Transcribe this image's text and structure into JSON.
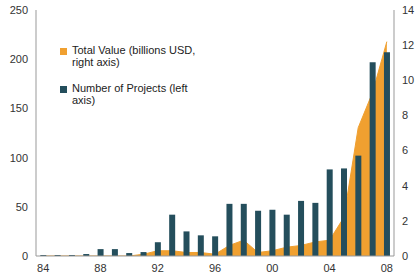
{
  "chart_data": {
    "type": "bar",
    "categories": [
      "84",
      null,
      null,
      null,
      "88",
      null,
      null,
      null,
      "92",
      null,
      null,
      null,
      "96",
      null,
      null,
      null,
      "00",
      null,
      null,
      null,
      "04",
      null,
      null,
      null,
      "08"
    ],
    "series": [
      {
        "name": "Total Value (billions USD, right axis)",
        "type": "area",
        "axis": "y2",
        "color": "#f0a030",
        "values": [
          0,
          0,
          0,
          0,
          0,
          0,
          0,
          0.1,
          0.3,
          0.3,
          0.2,
          0.2,
          0.1,
          0.6,
          0.9,
          0.2,
          0.3,
          0.5,
          0.6,
          0.8,
          0.9,
          2.2,
          7.3,
          9.3,
          12.2
        ]
      },
      {
        "name": "Number of Projects (left axis)",
        "type": "bar",
        "color": "#244e5c",
        "values": [
          1,
          1,
          1,
          2,
          7,
          7,
          3,
          4,
          14,
          42,
          25,
          21,
          20,
          53,
          53,
          46,
          47,
          42,
          56,
          54,
          88,
          89,
          102,
          197,
          207
        ]
      }
    ],
    "ylim": [
      0,
      250
    ],
    "yticks": [
      0,
      50,
      100,
      150,
      200,
      250
    ],
    "y2lim": [
      0,
      14
    ],
    "y2ticks": [
      0,
      2,
      4,
      6,
      8,
      10,
      12,
      14
    ],
    "grid": false,
    "legend": "upper left"
  }
}
